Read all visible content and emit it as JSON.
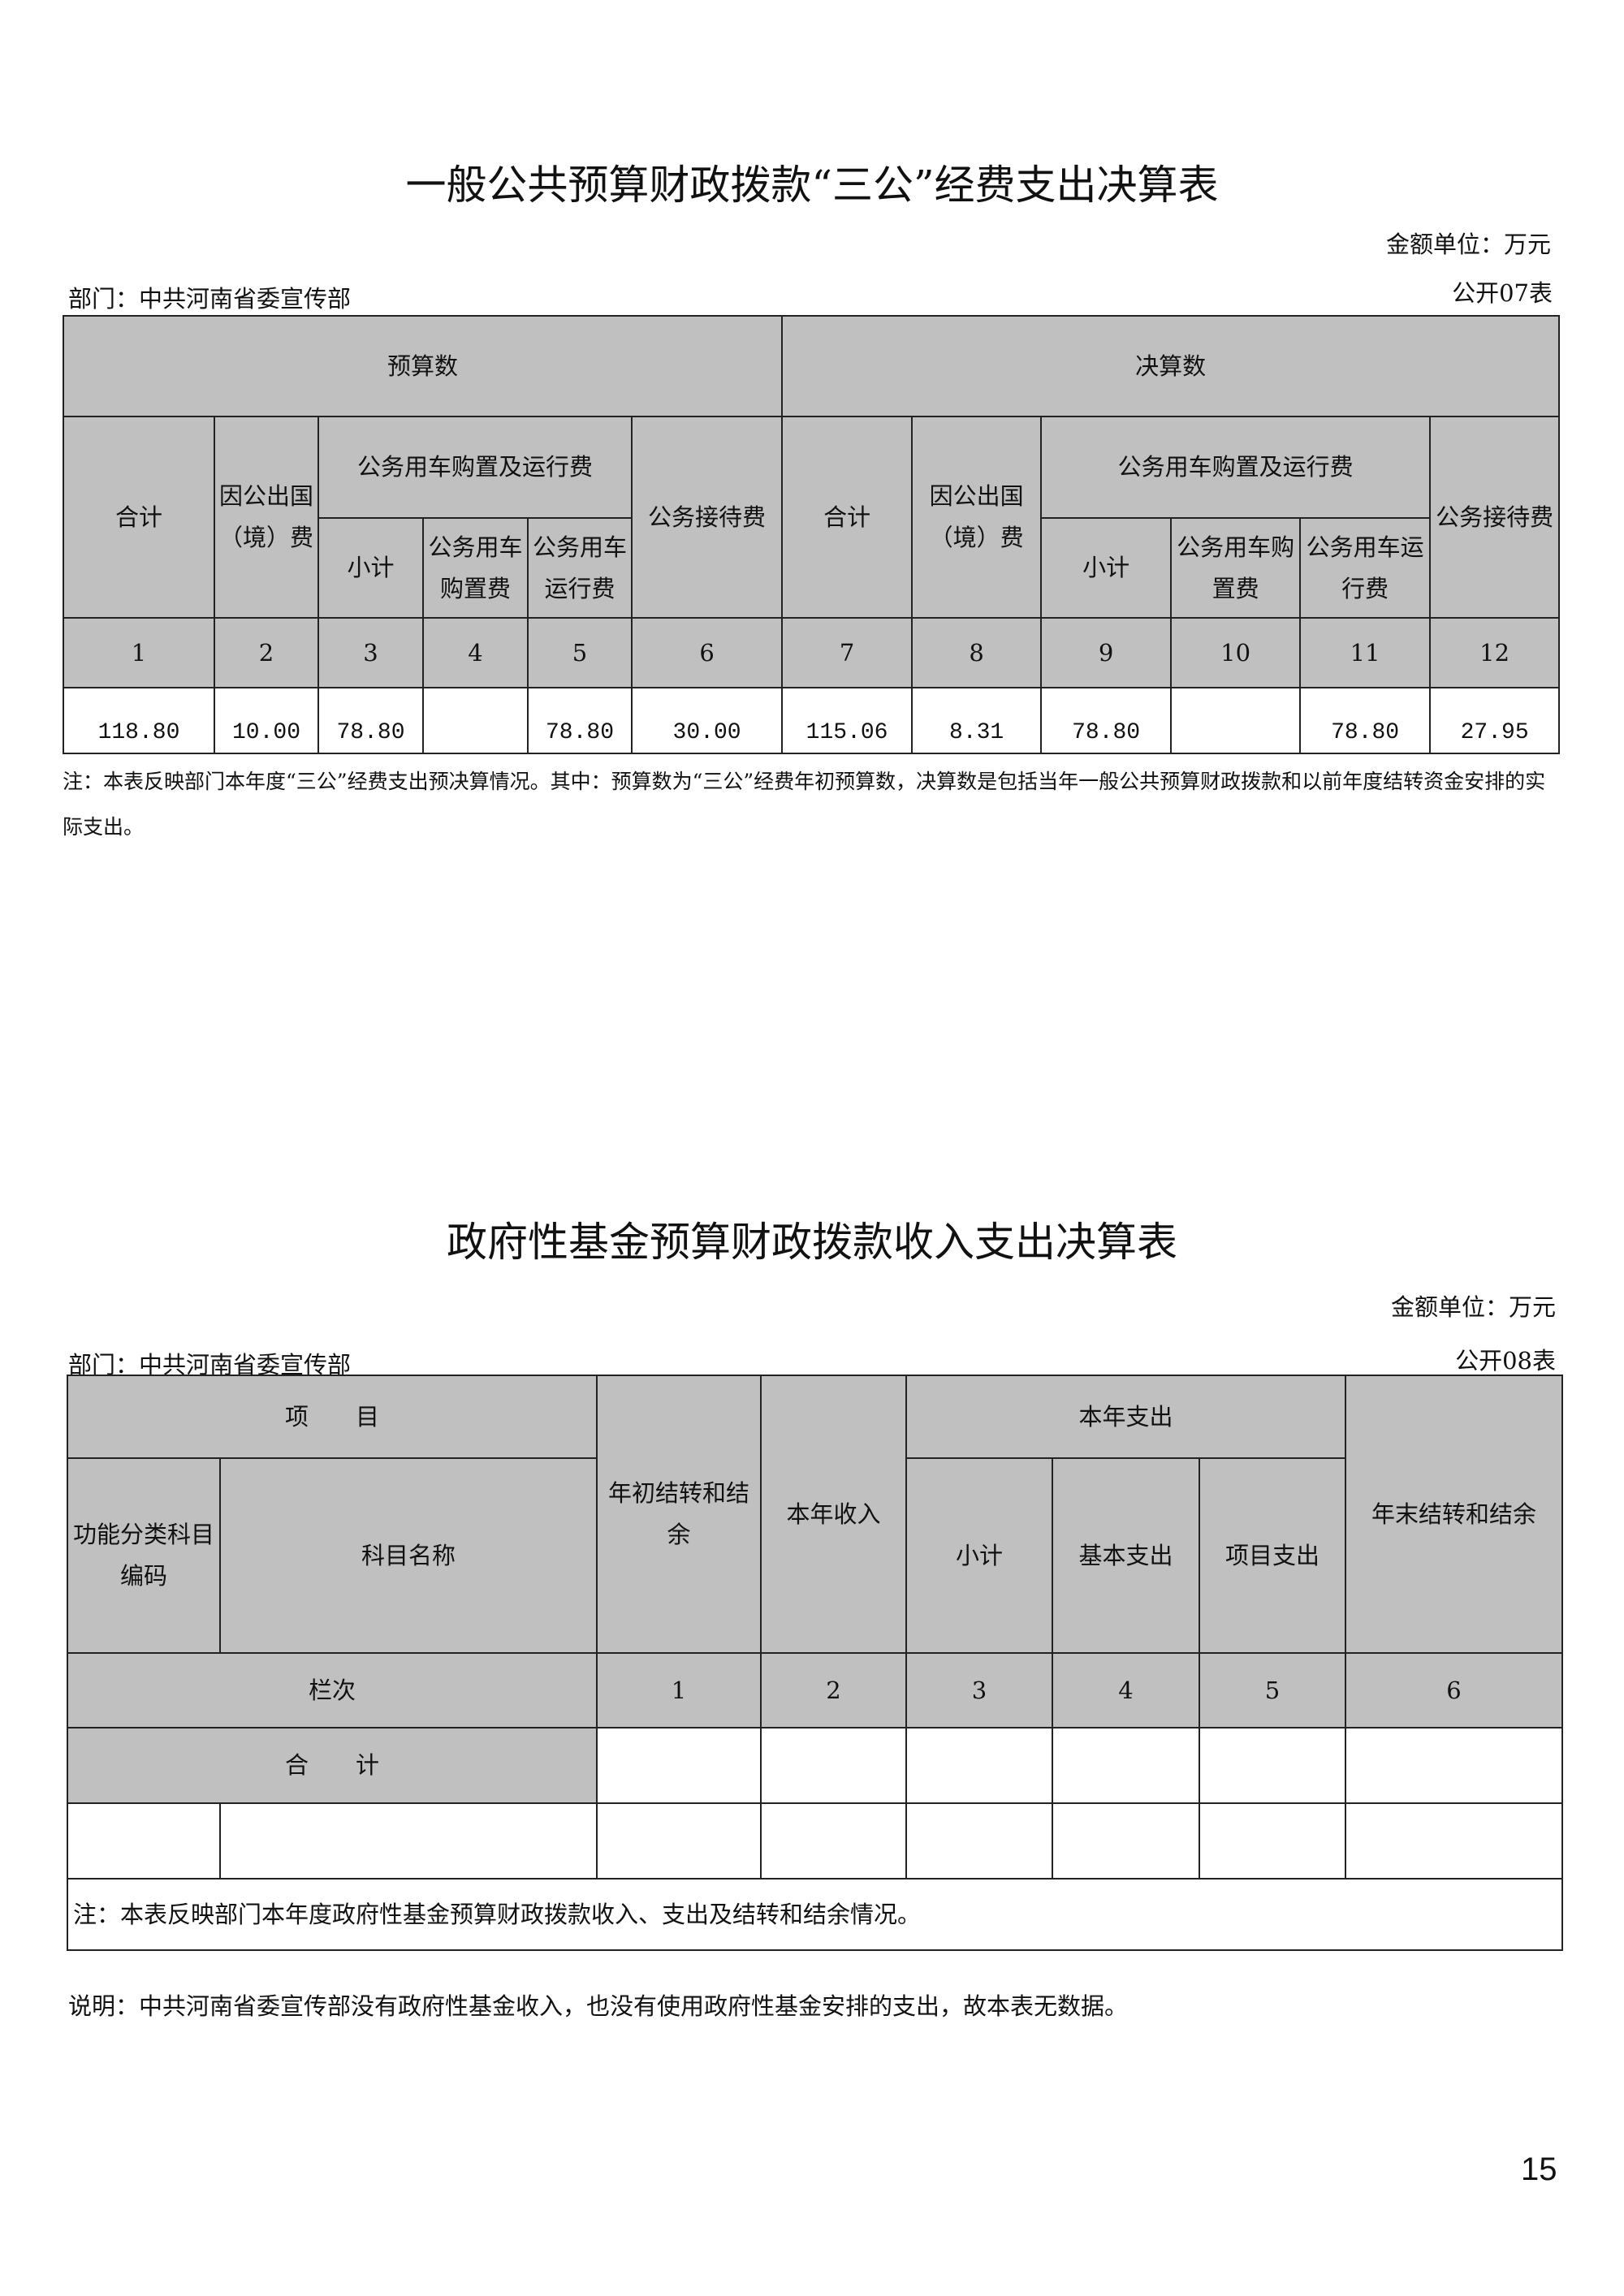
{
  "table1": {
    "title": "一般公共预算财政拨款“三公”经费支出决算表",
    "unit": "金额单位：万元",
    "department": "部门：中共河南省委宣传部",
    "table_no": "公开07表",
    "group_headers": [
      "预算数",
      "决算数"
    ],
    "col_total": "合计",
    "col_abroad": "因公出国（境）费",
    "col_vehicle": "公务用车购置及运行费",
    "col_reception": "公务接待费",
    "sub_budget": [
      "小计",
      "公务用车购置费",
      "公务用车运行费"
    ],
    "sub_final": [
      "小计",
      "公务用车购置费",
      "公务用车运行费"
    ],
    "col_numbers": [
      "1",
      "2",
      "3",
      "4",
      "5",
      "6",
      "7",
      "8",
      "9",
      "10",
      "11",
      "12"
    ],
    "values": [
      "118.80",
      "10.00",
      "78.80",
      "",
      "78.80",
      "30.00",
      "115.06",
      "8.31",
      "78.80",
      "",
      "78.80",
      "27.95"
    ],
    "note": "注：本表反映部门本年度“三公”经费支出预决算情况。其中：预算数为“三公”经费年初预算数，决算数是包括当年一般公共预算财政拨款和以前年度结转资金安排的实际支出。"
  },
  "table2": {
    "title": "政府性基金预算财政拨款收入支出决算表",
    "unit": "金额单位：万元",
    "department": "部门：中共河南省委宣传部",
    "table_no": "公开08表",
    "h_item": "项　　目",
    "h_code": "功能分类科目编码",
    "h_name": "科目名称",
    "h_begin": "年初结转和结余",
    "h_income": "本年收入",
    "h_expense": "本年支出",
    "h_sub": [
      "小计",
      "基本支出",
      "项目支出"
    ],
    "h_end": "年末结转和结余",
    "row_index_label": "栏次",
    "col_numbers": [
      "1",
      "2",
      "3",
      "4",
      "5",
      "6"
    ],
    "total_label": "合　　计",
    "note": "注：本表反映部门本年度政府性基金预算财政拨款收入、支出及结转和结余情况。",
    "explanation": "说明：中共河南省委宣传部没有政府性基金收入，也没有使用政府性基金安排的支出，故本表无数据。"
  },
  "page_number": "15"
}
